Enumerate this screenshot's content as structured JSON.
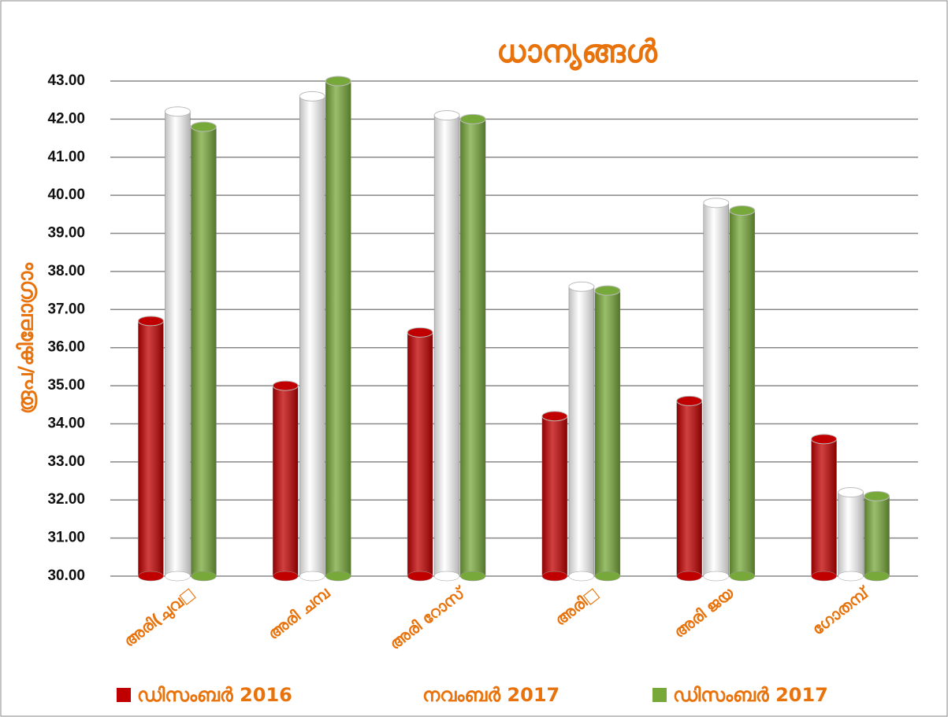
{
  "chart_data": {
    "type": "bar",
    "title": "ധാന്യങ്ങൾ",
    "y_label": "രൂപ/കിലോഗ്രാം",
    "categories": [
      "അരി(ചുവ□",
      "അരി ചമ്പ",
      "അരി റോസ്",
      "അരി□",
      "അരി ജയ",
      "ഗോതമ്പ്"
    ],
    "series": [
      {
        "name": "ഡിസംബർ 2016",
        "color": "#c00000",
        "values": [
          36.7,
          35.0,
          36.4,
          34.2,
          34.6,
          33.6
        ]
      },
      {
        "name": "നവംബർ 2017",
        "color": "#ffffff",
        "values": [
          42.2,
          42.6,
          42.1,
          37.6,
          39.8,
          32.2
        ]
      },
      {
        "name": "ഡിസംബർ 2017",
        "color": "#77a83a",
        "values": [
          41.8,
          43.0,
          42.0,
          37.5,
          39.6,
          32.1
        ]
      }
    ],
    "ylim": [
      30,
      43
    ],
    "yticks": [
      {
        "value": 30,
        "label": "30.00"
      },
      {
        "value": 31,
        "label": "31.00"
      },
      {
        "value": 32,
        "label": "32.00"
      },
      {
        "value": 33,
        "label": "33.00"
      },
      {
        "value": 34,
        "label": "34.00"
      },
      {
        "value": 35,
        "label": "35.00"
      },
      {
        "value": 36,
        "label": "36.00"
      },
      {
        "value": 37,
        "label": "37.00"
      },
      {
        "value": 38,
        "label": "38.00"
      },
      {
        "value": 39,
        "label": "39.00"
      },
      {
        "value": 40,
        "label": "40.00"
      },
      {
        "value": 41,
        "label": "41.00"
      },
      {
        "value": 42,
        "label": "42.00"
      },
      {
        "value": 43,
        "label": "43.00"
      }
    ],
    "grid": true
  }
}
